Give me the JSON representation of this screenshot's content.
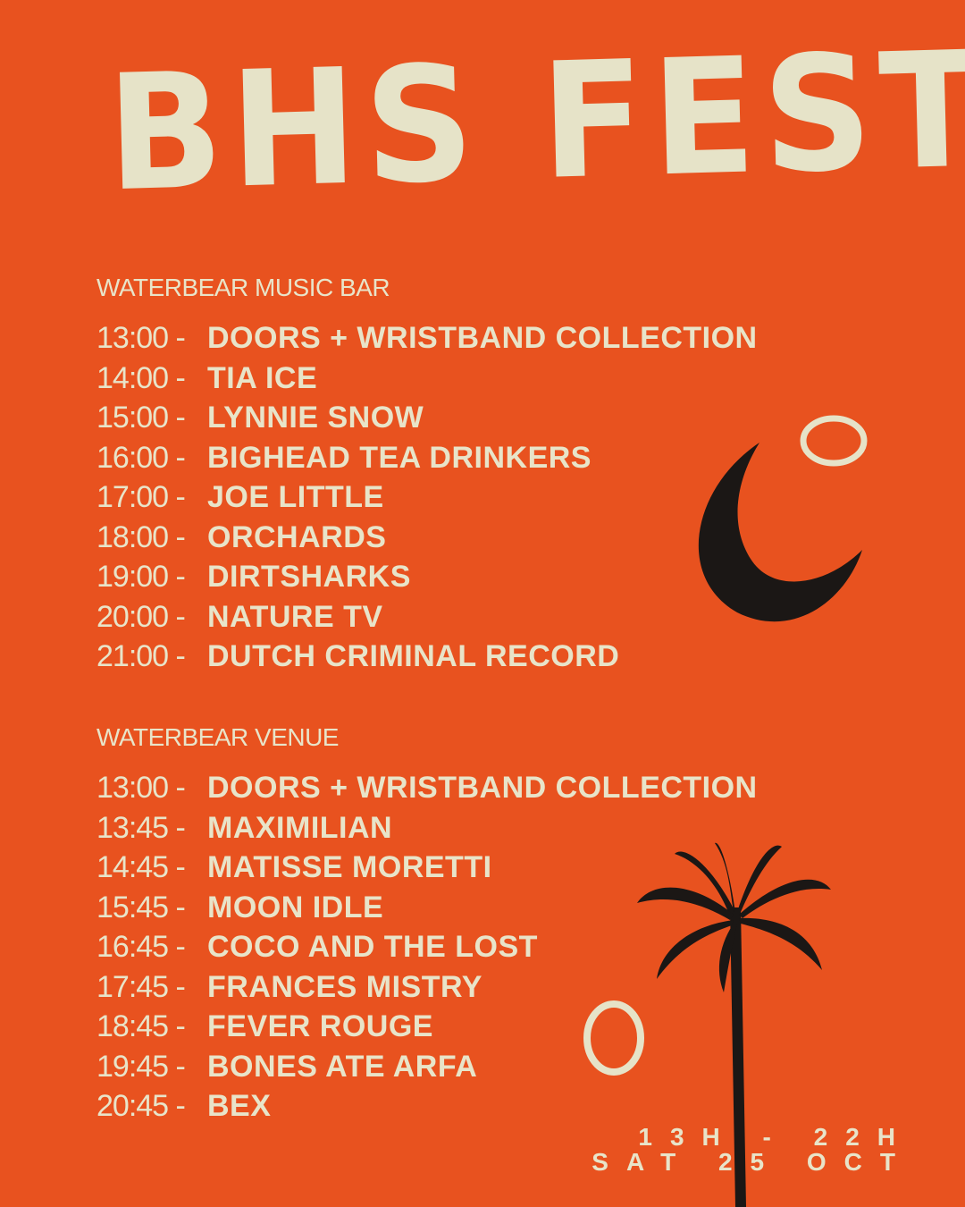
{
  "title": "BHS FEST",
  "sections": [
    {
      "heading": "WATERBEAR MUSIC BAR",
      "rows": [
        {
          "time": "13:00 -",
          "act": "DOORS + WRISTBAND COLLECTION"
        },
        {
          "time": "14:00 -",
          "act": "TIA ICE"
        },
        {
          "time": "15:00 -",
          "act": "LYNNIE SNOW"
        },
        {
          "time": "16:00 -",
          "act": "BIGHEAD TEA DRINKERS"
        },
        {
          "time": "17:00 -",
          "act": "JOE LITTLE"
        },
        {
          "time": "18:00 -",
          "act": "ORCHARDS"
        },
        {
          "time": "19:00 -",
          "act": "DIRTSHARKS"
        },
        {
          "time": "20:00 -",
          "act": "NATURE TV"
        },
        {
          "time": "21:00 -",
          "act": "DUTCH CRIMINAL RECORD"
        }
      ]
    },
    {
      "heading": "WATERBEAR VENUE",
      "rows": [
        {
          "time": "13:00 -",
          "act": "DOORS + WRISTBAND COLLECTION"
        },
        {
          "time": "13:45 -",
          "act": "MAXIMILIAN"
        },
        {
          "time": "14:45 -",
          "act": "MATISSE MORETTI"
        },
        {
          "time": "15:45 -",
          "act": "MOON IDLE"
        },
        {
          "time": "16:45 -",
          "act": "COCO AND THE LOST"
        },
        {
          "time": "17:45 -",
          "act": "FRANCES MISTRY"
        },
        {
          "time": "18:45 -",
          "act": "FEVER ROUGE"
        },
        {
          "time": "19:45 -",
          "act": "BONES ATE ARFA"
        },
        {
          "time": "20:45 -",
          "act": "BEX"
        }
      ]
    }
  ],
  "date": {
    "hours": "13H - 22H",
    "day": "SAT 25 OCT"
  },
  "colors": {
    "background": "#e8521f",
    "text": "#e8e4c9",
    "ink": "#1b1715"
  },
  "icons": [
    "crescent-moon-icon",
    "circle-doodle-icon",
    "palm-tree-icon",
    "oval-doodle-icon"
  ]
}
